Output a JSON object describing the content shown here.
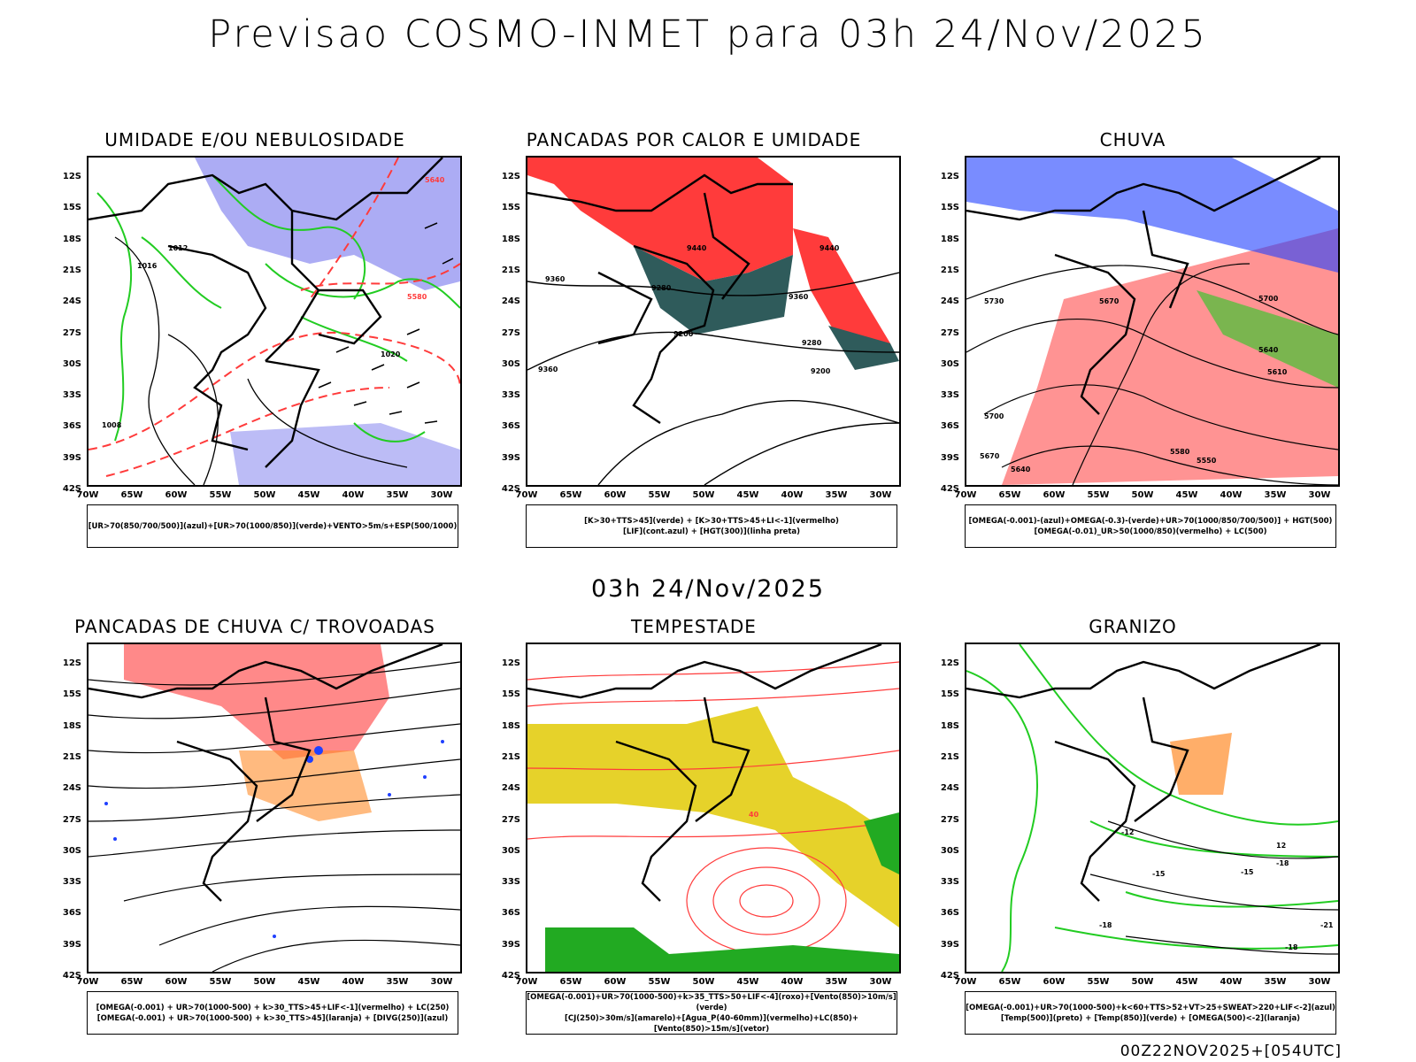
{
  "header": {
    "title": "Previsao COSMO-INMET  para 03h 24/Nov/2025"
  },
  "mid_time": "03h 24/Nov/2025",
  "footer": "00Z22NOV2025+[054UTC]",
  "axes": {
    "lat_ticks": [
      "12S",
      "15S",
      "18S",
      "21S",
      "24S",
      "27S",
      "30S",
      "33S",
      "36S",
      "39S",
      "42S"
    ],
    "lon_ticks": [
      "70W",
      "65W",
      "60W",
      "55W",
      "50W",
      "45W",
      "40W",
      "35W",
      "30W"
    ]
  },
  "panels": [
    {
      "title": "UMIDADE E/OU NEBULOSIDADE",
      "legend": [
        "[UR>70(850/700/500)](azul)+[UR>70(1000/850)](verde)+VENTO>5m/s+ESP(500/1000)"
      ],
      "contour_labels": [
        "1012",
        "1016",
        "1020",
        "1008",
        "5640",
        "5580"
      ]
    },
    {
      "title": "PANCADAS POR CALOR E UMIDADE",
      "legend": [
        "[K>30+TTS>45](verde) + [K>30+TTS>45+LI<-1](vermelho)",
        "[LIF](cont.azul) + [HGT(300)](linha preta)"
      ],
      "contour_labels": [
        "9440",
        "9360",
        "9280",
        "9200",
        "9440",
        "9360",
        "9280",
        "9200",
        "9360"
      ]
    },
    {
      "title": "CHUVA",
      "legend": [
        "[OMEGA(-0.001)-(azul)+OMEGA(-0.3)-(verde)+UR>70(1000/850/700/500)] + HGT(500)",
        "[OMEGA(-0.01)_UR>50(1000/850)(vermelho) + LC(500)"
      ],
      "contour_labels": [
        "5730",
        "5700",
        "5670",
        "5640",
        "5610",
        "5580",
        "5550",
        "5700",
        "5670",
        "5640"
      ]
    },
    {
      "title": "PANCADAS DE CHUVA C/ TROVOADAS",
      "legend": [
        "[OMEGA(-0.001) + UR>70(1000-500) + k>30_TTS>45+LIF<-1](vermelho) + LC(250)",
        "[OMEGA(-0.001) + UR>70(1000-500) + k>30_TTS>45](laranja) + [DIVG(250)](azul)"
      ],
      "contour_labels": []
    },
    {
      "title": "TEMPESTADE",
      "legend": [
        "[OMEGA(-0.001)+UR>70(1000-500)+k>35_TTS>50+LIF<-4](roxo)+[Vento(850)>10m/s](verde)",
        "[CJ(250)>30m/s](amarelo)+[Agua_P(40-60mm)](vermelho)+LC(850)+[Vento(850)>15m/s](vetor)"
      ],
      "contour_labels": [
        "40"
      ]
    },
    {
      "title": "GRANIZO",
      "legend": [
        "[OMEGA(-0.001)+UR>70(1000-500)+k<60+TTS>52+VT>25+SWEAT>220+LIF<-2](azul)",
        "[Temp(500)](preto) + [Temp(850)](verde) + [OMEGA(500)<-2](laranja)"
      ],
      "contour_labels": [
        "12",
        "-15",
        "-18",
        "-21",
        "-15",
        "-18",
        "-12",
        "-18"
      ]
    }
  ],
  "colors": {
    "blue": "#9090f0",
    "green": "#22cc22",
    "red": "#ff3b3b",
    "yellow": "#e6d22a",
    "teal": "#2f5b5b",
    "orange": "#ff8c2a",
    "pt_blue": "#2040ff"
  }
}
